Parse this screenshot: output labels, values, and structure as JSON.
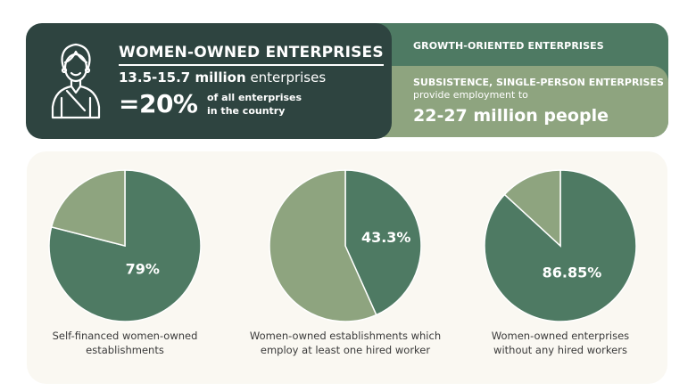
{
  "header": {
    "title": "WOMEN-OWNED ENTERPRISES",
    "count_bold": "13.5-15.7 million",
    "count_rest": "enterprises",
    "percent": "=20%",
    "percent_desc_line1": "of all enterprises",
    "percent_desc_line2": "in the country"
  },
  "growth_card": {
    "label": "GROWTH-ORIENTED ENTERPRISES"
  },
  "subsistence_card": {
    "title": "SUBSISTENCE, SINGLE-PERSON ENTERPRISES",
    "subtitle": "provide employment to",
    "value": "22-27 million people"
  },
  "colors": {
    "dark": "#2e4440",
    "primary": "#4e7a63",
    "secondary": "#8ea47f",
    "panel": "#faf8f2"
  },
  "chart_data": [
    {
      "type": "pie",
      "slices": [
        {
          "label": "Self-financed",
          "value": 79,
          "color": "#4e7a63"
        },
        {
          "label": "Other",
          "value": 21,
          "color": "#8ea47f"
        }
      ],
      "data_label": "79%",
      "caption_line1": "Self-financed women-owned",
      "caption_line2": "establishments"
    },
    {
      "type": "pie",
      "slices": [
        {
          "label": "Employ at least one hired worker",
          "value": 43.3,
          "color": "#4e7a63"
        },
        {
          "label": "Other",
          "value": 56.7,
          "color": "#8ea47f"
        }
      ],
      "data_label": "43.3%",
      "caption_line1": "Women-owned establishments which",
      "caption_line2": "employ at least one hired worker"
    },
    {
      "type": "pie",
      "slices": [
        {
          "label": "Without any hired workers",
          "value": 86.85,
          "color": "#4e7a63"
        },
        {
          "label": "Other",
          "value": 13.15,
          "color": "#8ea47f"
        }
      ],
      "data_label": "86.85%",
      "caption_line1": "Women-owned enterprises",
      "caption_line2": "without any hired workers"
    }
  ]
}
